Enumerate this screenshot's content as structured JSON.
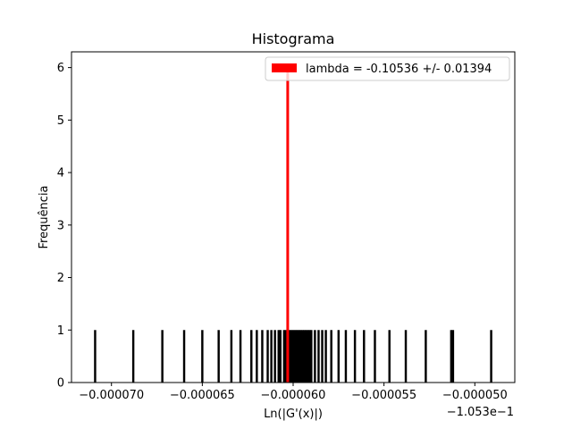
{
  "chart_data": {
    "type": "bar",
    "title": "Histograma",
    "xlabel": "Ln(|G'(x)|)",
    "ylabel": "Frequência",
    "x_offset_label": "−1.053e−1",
    "xlim": [
      -7.22e-05,
      -4.78e-05
    ],
    "ylim": [
      0,
      6.3
    ],
    "x_ticks": [
      -7e-05,
      -6.5e-05,
      -6e-05,
      -5.5e-05,
      -5e-05
    ],
    "x_tick_labels": [
      "−0.000070",
      "−0.000065",
      "−0.000060",
      "−0.000055",
      "−0.000050"
    ],
    "y_ticks": [
      0,
      1,
      2,
      3,
      4,
      5,
      6
    ],
    "y_tick_labels": [
      "0",
      "1",
      "2",
      "3",
      "4",
      "5",
      "6"
    ],
    "series": [
      {
        "type": "histogram",
        "color": "#000000",
        "bar_width": 1.2e-07,
        "x": [
          -7.09e-05,
          -6.88e-05,
          -6.72e-05,
          -6.6e-05,
          -6.5e-05,
          -6.41e-05,
          -6.34e-05,
          -6.29e-05,
          -6.23e-05,
          -6.2e-05,
          -6.17e-05,
          -6.14e-05,
          -6.12e-05,
          -6.1e-05,
          -6.08e-05,
          -6.07e-05,
          -6.05e-05,
          -6.04e-05,
          -6.03e-05,
          -6.02e-05,
          -6.01e-05,
          -6e-05,
          -5.99e-05,
          -5.98e-05,
          -5.97e-05,
          -5.96e-05,
          -5.95e-05,
          -5.94e-05,
          -5.93e-05,
          -5.92e-05,
          -5.91e-05,
          -5.9e-05,
          -5.88e-05,
          -5.86e-05,
          -5.84e-05,
          -5.82e-05,
          -5.79e-05,
          -5.75e-05,
          -5.71e-05,
          -5.66e-05,
          -5.61e-05,
          -5.55e-05,
          -5.47e-05,
          -5.38e-05,
          -5.27e-05,
          -5.13e-05,
          -5.12e-05,
          -4.91e-05
        ],
        "values": [
          1,
          1,
          1,
          1,
          1,
          1,
          1,
          1,
          1,
          1,
          1,
          1,
          1,
          1,
          1,
          1,
          1,
          1,
          1,
          1,
          1,
          1,
          1,
          1,
          1,
          1,
          1,
          1,
          1,
          1,
          1,
          1,
          1,
          1,
          1,
          1,
          1,
          1,
          1,
          1,
          1,
          1,
          1,
          1,
          1,
          1,
          1,
          1
        ]
      },
      {
        "name": "lambda = -0.10536 +/- 0.01394",
        "type": "vline",
        "color": "#ff0000",
        "x": -6.03e-05,
        "y": 6.0
      }
    ],
    "legend": {
      "label": "lambda = -0.10536 +/- 0.01394",
      "color": "#ff0000",
      "placement": "top-right"
    },
    "grid": false
  }
}
